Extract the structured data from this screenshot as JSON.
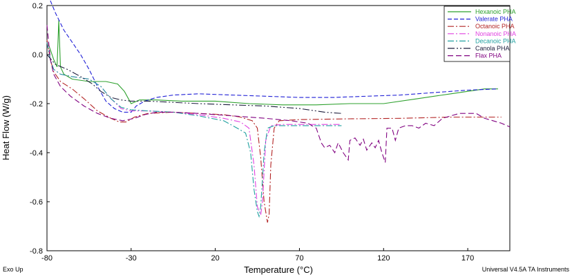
{
  "footer": {
    "left": "Exo Up",
    "right": "Universal V4.5A TA Instruments"
  },
  "chart_data": {
    "type": "line",
    "xlabel": "Temperature (°C)",
    "ylabel": "Heat Flow (W/g)",
    "xlim": [
      -80,
      195
    ],
    "ylim": [
      -0.8,
      0.2
    ],
    "x_ticks": [
      -80,
      -30,
      20,
      70,
      120,
      170
    ],
    "y_ticks": [
      0.2,
      0.0,
      -0.2,
      -0.4,
      -0.6,
      -0.8
    ],
    "y_tick_labels": [
      "0.2",
      "0.0",
      "-0.2",
      "-0.4",
      "-0.6",
      "-0.8"
    ],
    "legend_position": "top-right",
    "grid": false,
    "series": [
      {
        "name": "Hexanoic PHA",
        "color": "#2ca02c",
        "dash": "",
        "points": [
          [
            -79,
            0.04
          ],
          [
            -76,
            -0.02
          ],
          [
            -74,
            -0.05
          ],
          [
            -73,
            0.14
          ],
          [
            -72,
            -0.05
          ],
          [
            -70,
            -0.08
          ],
          [
            -65,
            -0.1
          ],
          [
            -55,
            -0.11
          ],
          [
            -45,
            -0.11
          ],
          [
            -38,
            -0.12
          ],
          [
            -34,
            -0.15
          ],
          [
            -30,
            -0.2
          ],
          [
            -25,
            -0.185
          ],
          [
            -15,
            -0.185
          ],
          [
            0,
            -0.19
          ],
          [
            20,
            -0.19
          ],
          [
            40,
            -0.2
          ],
          [
            60,
            -0.205
          ],
          [
            80,
            -0.205
          ],
          [
            100,
            -0.2
          ],
          [
            120,
            -0.2
          ],
          [
            140,
            -0.18
          ],
          [
            160,
            -0.16
          ],
          [
            180,
            -0.14
          ],
          [
            188,
            -0.14
          ]
        ]
      },
      {
        "name": "Valerate PHA",
        "color": "#1f1fd6",
        "dash": "6,3",
        "points": [
          [
            -78,
            0.22
          ],
          [
            -75,
            0.17
          ],
          [
            -70,
            0.1
          ],
          [
            -65,
            0.05
          ],
          [
            -60,
            0.0
          ],
          [
            -55,
            -0.06
          ],
          [
            -50,
            -0.13
          ],
          [
            -45,
            -0.19
          ],
          [
            -40,
            -0.22
          ],
          [
            -35,
            -0.235
          ],
          [
            -30,
            -0.235
          ],
          [
            -27,
            -0.21
          ],
          [
            -22,
            -0.19
          ],
          [
            -15,
            -0.175
          ],
          [
            -5,
            -0.165
          ],
          [
            10,
            -0.16
          ],
          [
            30,
            -0.165
          ],
          [
            50,
            -0.17
          ],
          [
            70,
            -0.175
          ],
          [
            90,
            -0.175
          ],
          [
            110,
            -0.17
          ],
          [
            130,
            -0.165
          ],
          [
            150,
            -0.155
          ],
          [
            170,
            -0.145
          ],
          [
            188,
            -0.14
          ]
        ]
      },
      {
        "name": "Octanoic PHA",
        "color": "#b22222",
        "dash": "9,3,2,3",
        "points": [
          [
            -80,
            0.06
          ],
          [
            -78,
            -0.02
          ],
          [
            -76,
            -0.07
          ],
          [
            -72,
            -0.11
          ],
          [
            -65,
            -0.14
          ],
          [
            -58,
            -0.18
          ],
          [
            -50,
            -0.23
          ],
          [
            -42,
            -0.26
          ],
          [
            -37,
            -0.275
          ],
          [
            -33,
            -0.275
          ],
          [
            -28,
            -0.255
          ],
          [
            -20,
            -0.24
          ],
          [
            -5,
            -0.235
          ],
          [
            10,
            -0.24
          ],
          [
            25,
            -0.245
          ],
          [
            35,
            -0.255
          ],
          [
            42,
            -0.27
          ],
          [
            45,
            -0.3
          ],
          [
            47,
            -0.42
          ],
          [
            49,
            -0.6
          ],
          [
            51,
            -0.685
          ],
          [
            52,
            -0.65
          ],
          [
            53,
            -0.45
          ],
          [
            55,
            -0.3
          ],
          [
            58,
            -0.27
          ],
          [
            70,
            -0.265
          ],
          [
            100,
            -0.262
          ],
          [
            130,
            -0.26
          ],
          [
            160,
            -0.255
          ],
          [
            190,
            -0.255
          ]
        ]
      },
      {
        "name": "Nonanoic PHA",
        "color": "#e040e0",
        "dash": "9,3,2,3",
        "points": [
          [
            -80,
            0.05
          ],
          [
            -78,
            -0.02
          ],
          [
            -76,
            -0.06
          ],
          [
            -72,
            -0.08
          ],
          [
            -65,
            -0.09
          ],
          [
            -55,
            -0.1
          ],
          [
            -48,
            -0.13
          ],
          [
            -42,
            -0.18
          ],
          [
            -36,
            -0.22
          ],
          [
            -30,
            -0.23
          ],
          [
            -20,
            -0.23
          ],
          [
            -5,
            -0.235
          ],
          [
            10,
            -0.245
          ],
          [
            25,
            -0.26
          ],
          [
            35,
            -0.275
          ],
          [
            40,
            -0.3
          ],
          [
            43,
            -0.45
          ],
          [
            45,
            -0.62
          ],
          [
            47,
            -0.655
          ],
          [
            48,
            -0.6
          ],
          [
            50,
            -0.35
          ],
          [
            53,
            -0.29
          ],
          [
            60,
            -0.285
          ],
          [
            80,
            -0.285
          ],
          [
            95,
            -0.285
          ]
        ]
      },
      {
        "name": "Decanoic PHA",
        "color": "#20a0a0",
        "dash": "9,3,2,3",
        "points": [
          [
            -80,
            0.05
          ],
          [
            -78,
            -0.02
          ],
          [
            -76,
            -0.06
          ],
          [
            -72,
            -0.08
          ],
          [
            -65,
            -0.09
          ],
          [
            -55,
            -0.1
          ],
          [
            -48,
            -0.13
          ],
          [
            -42,
            -0.18
          ],
          [
            -36,
            -0.215
          ],
          [
            -30,
            -0.225
          ],
          [
            -20,
            -0.23
          ],
          [
            -5,
            -0.235
          ],
          [
            10,
            -0.25
          ],
          [
            25,
            -0.27
          ],
          [
            33,
            -0.3
          ],
          [
            38,
            -0.32
          ],
          [
            41,
            -0.4
          ],
          [
            43,
            -0.55
          ],
          [
            45,
            -0.64
          ],
          [
            46,
            -0.66
          ],
          [
            47,
            -0.62
          ],
          [
            49,
            -0.4
          ],
          [
            51,
            -0.3
          ],
          [
            55,
            -0.29
          ],
          [
            80,
            -0.29
          ],
          [
            95,
            -0.29
          ]
        ]
      },
      {
        "name": "Canola PHA",
        "color": "#1a1a3a",
        "dash": "10,3,2,3,2,3",
        "points": [
          [
            -80,
            0.0
          ],
          [
            -75,
            -0.04
          ],
          [
            -68,
            -0.06
          ],
          [
            -60,
            -0.09
          ],
          [
            -53,
            -0.12
          ],
          [
            -48,
            -0.15
          ],
          [
            -42,
            -0.175
          ],
          [
            -36,
            -0.185
          ],
          [
            -30,
            -0.19
          ],
          [
            -20,
            -0.19
          ],
          [
            -5,
            -0.195
          ],
          [
            10,
            -0.2
          ],
          [
            30,
            -0.205
          ],
          [
            50,
            -0.21
          ],
          [
            70,
            -0.22
          ],
          [
            85,
            -0.235
          ],
          [
            95,
            -0.24
          ]
        ]
      },
      {
        "name": "Flax PHA",
        "color": "#800080",
        "dash": "8,4",
        "points": [
          [
            -80,
            0.12
          ],
          [
            -78,
            -0.02
          ],
          [
            -76,
            -0.08
          ],
          [
            -72,
            -0.13
          ],
          [
            -66,
            -0.17
          ],
          [
            -58,
            -0.21
          ],
          [
            -50,
            -0.24
          ],
          [
            -42,
            -0.26
          ],
          [
            -35,
            -0.27
          ],
          [
            -28,
            -0.26
          ],
          [
            -22,
            -0.245
          ],
          [
            -15,
            -0.235
          ],
          [
            -5,
            -0.235
          ],
          [
            10,
            -0.24
          ],
          [
            30,
            -0.25
          ],
          [
            50,
            -0.26
          ],
          [
            65,
            -0.27
          ],
          [
            75,
            -0.28
          ],
          [
            80,
            -0.3
          ],
          [
            83,
            -0.36
          ],
          [
            85,
            -0.38
          ],
          [
            88,
            -0.37
          ],
          [
            91,
            -0.4
          ],
          [
            93,
            -0.36
          ],
          [
            96,
            -0.4
          ],
          [
            99,
            -0.43
          ],
          [
            100,
            -0.35
          ],
          [
            103,
            -0.34
          ],
          [
            106,
            -0.37
          ],
          [
            108,
            -0.345
          ],
          [
            110,
            -0.39
          ],
          [
            113,
            -0.36
          ],
          [
            115,
            -0.38
          ],
          [
            117,
            -0.35
          ],
          [
            119,
            -0.4
          ],
          [
            121,
            -0.44
          ],
          [
            122,
            -0.3
          ],
          [
            125,
            -0.3
          ],
          [
            127,
            -0.35
          ],
          [
            129,
            -0.3
          ],
          [
            133,
            -0.29
          ],
          [
            137,
            -0.29
          ],
          [
            141,
            -0.3
          ],
          [
            145,
            -0.28
          ],
          [
            150,
            -0.29
          ],
          [
            155,
            -0.26
          ],
          [
            160,
            -0.25
          ],
          [
            165,
            -0.24
          ],
          [
            170,
            -0.24
          ],
          [
            175,
            -0.24
          ],
          [
            180,
            -0.26
          ],
          [
            185,
            -0.27
          ],
          [
            190,
            -0.28
          ],
          [
            195,
            -0.295
          ]
        ]
      }
    ]
  }
}
